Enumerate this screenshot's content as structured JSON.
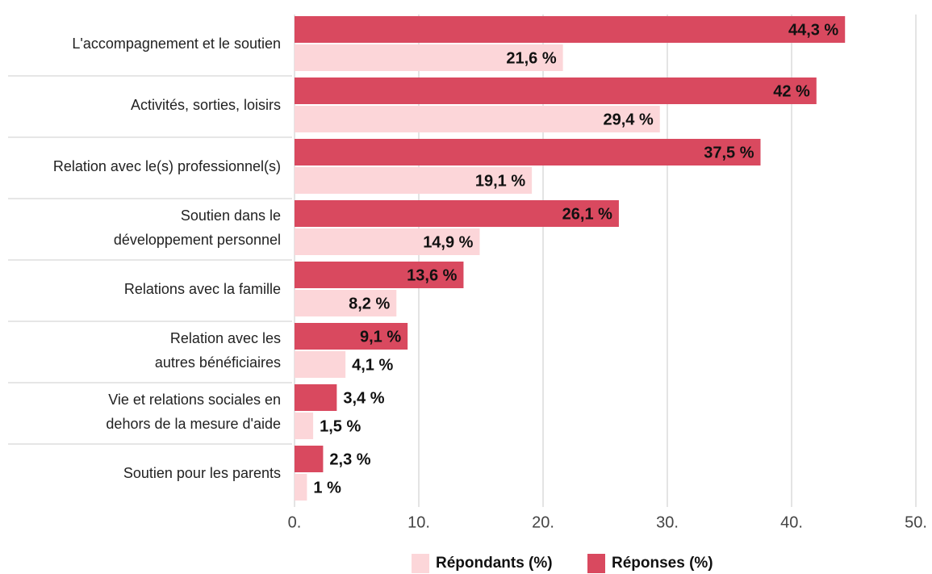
{
  "chart_data": {
    "type": "bar",
    "orientation": "horizontal",
    "categories": [
      "L'accompagnement et le soutien",
      "Activités, sorties, loisirs",
      "Relation avec le(s) professionnel(s)",
      "Soutien dans le\ndéveloppement personnel",
      "Relations avec la famille",
      "Relation avec les\nautres bénéficiaires",
      "Vie et relations sociales en\ndehors de la mesure d'aide",
      "Soutien pour les parents"
    ],
    "series": [
      {
        "name": "Répondants (%)",
        "color": "#fcd6d9",
        "values": [
          21.6,
          29.4,
          19.1,
          14.9,
          8.2,
          4.1,
          1.5,
          1
        ],
        "value_labels": [
          "21,6 %",
          "29,4 %",
          "19,1 %",
          "14,9 %",
          "8,2 %",
          "4,1 %",
          "1,5 %",
          "1 %"
        ]
      },
      {
        "name": "Réponses (%)",
        "color": "#d9495f",
        "values": [
          44.3,
          42,
          37.5,
          26.1,
          13.6,
          9.1,
          3.4,
          2.3
        ],
        "value_labels": [
          "44,3 %",
          "42 %",
          "37,5 %",
          "26,1 %",
          "13,6 %",
          "9,1 %",
          "3,4 %",
          "2,3 %"
        ]
      }
    ],
    "xlim": [
      0,
      50
    ],
    "xticks": [
      {
        "value": 0,
        "label": "0."
      },
      {
        "value": 10,
        "label": "10."
      },
      {
        "value": 20,
        "label": "20."
      },
      {
        "value": 30,
        "label": "30."
      },
      {
        "value": 40,
        "label": "40."
      },
      {
        "value": 50,
        "label": "50."
      }
    ],
    "grid": true,
    "legend": "bottom"
  }
}
